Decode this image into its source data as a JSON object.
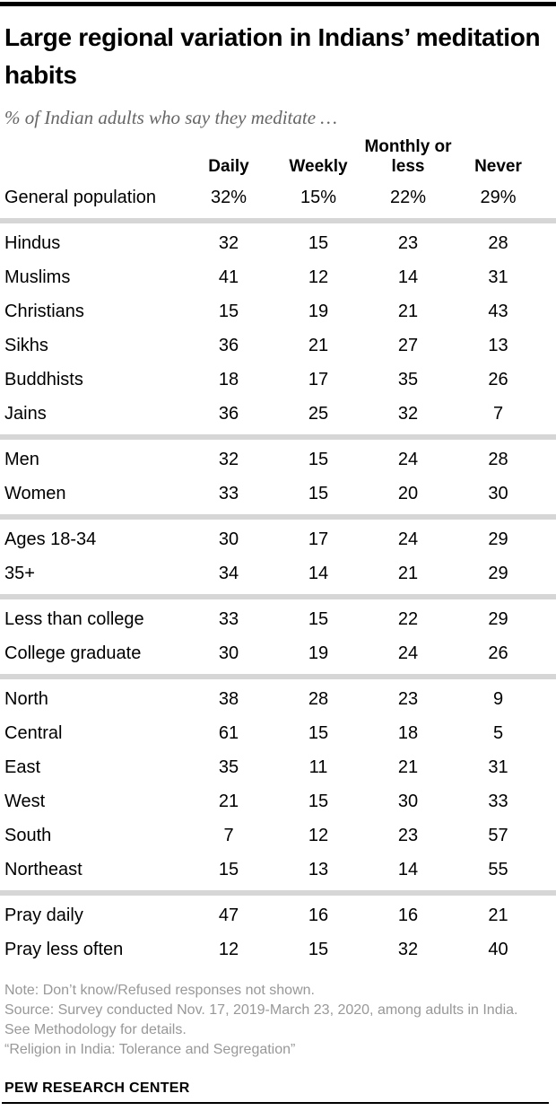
{
  "chart_data": {
    "type": "table",
    "title": "Large regional variation in Indians’ meditation habits",
    "subtitle": "% of Indian adults who say they meditate …",
    "columns": [
      "Daily",
      "Weekly",
      "Monthly or less",
      "Never"
    ],
    "sections": [
      {
        "name": "general",
        "rows": [
          {
            "label": "General population",
            "values": [
              "32%",
              "15%",
              "22%",
              "29%"
            ]
          }
        ]
      },
      {
        "name": "religion",
        "rows": [
          {
            "label": "Hindus",
            "values": [
              "32",
              "15",
              "23",
              "28"
            ]
          },
          {
            "label": "Muslims",
            "values": [
              "41",
              "12",
              "14",
              "31"
            ]
          },
          {
            "label": "Christians",
            "values": [
              "15",
              "19",
              "21",
              "43"
            ]
          },
          {
            "label": "Sikhs",
            "values": [
              "36",
              "21",
              "27",
              "13"
            ]
          },
          {
            "label": "Buddhists",
            "values": [
              "18",
              "17",
              "35",
              "26"
            ]
          },
          {
            "label": "Jains",
            "values": [
              "36",
              "25",
              "32",
              "7"
            ]
          }
        ]
      },
      {
        "name": "gender",
        "rows": [
          {
            "label": "Men",
            "values": [
              "32",
              "15",
              "24",
              "28"
            ]
          },
          {
            "label": "Women",
            "values": [
              "33",
              "15",
              "20",
              "30"
            ]
          }
        ]
      },
      {
        "name": "age",
        "rows": [
          {
            "label": "Ages 18-34",
            "values": [
              "30",
              "17",
              "24",
              "29"
            ]
          },
          {
            "label": "35+",
            "values": [
              "34",
              "14",
              "21",
              "29"
            ]
          }
        ]
      },
      {
        "name": "education",
        "rows": [
          {
            "label": "Less than college",
            "values": [
              "33",
              "15",
              "22",
              "29"
            ]
          },
          {
            "label": "College graduate",
            "values": [
              "30",
              "19",
              "24",
              "26"
            ]
          }
        ]
      },
      {
        "name": "region",
        "rows": [
          {
            "label": "North",
            "values": [
              "38",
              "28",
              "23",
              "9"
            ]
          },
          {
            "label": "Central",
            "values": [
              "61",
              "15",
              "18",
              "5"
            ]
          },
          {
            "label": "East",
            "values": [
              "35",
              "11",
              "21",
              "31"
            ]
          },
          {
            "label": "West",
            "values": [
              "21",
              "15",
              "30",
              "33"
            ]
          },
          {
            "label": "South",
            "values": [
              "7",
              "12",
              "23",
              "57"
            ]
          },
          {
            "label": "Northeast",
            "values": [
              "15",
              "13",
              "14",
              "55"
            ]
          }
        ]
      },
      {
        "name": "prayer",
        "rows": [
          {
            "label": "Pray daily",
            "values": [
              "47",
              "16",
              "16",
              "21"
            ]
          },
          {
            "label": "Pray less often",
            "values": [
              "12",
              "15",
              "32",
              "40"
            ]
          }
        ]
      }
    ],
    "colors": {
      "separator": "#d6d6d6",
      "rule": "#000000",
      "subtitle_text": "#666666",
      "note_text": "#989898"
    }
  },
  "footer": {
    "note": "Note: Don’t know/Refused responses not shown.",
    "source": "Source: Survey conducted Nov. 17, 2019-March 23, 2020, among adults in India. See Methodology for details.",
    "citation": "“Religion in India: Tolerance and Segregation”",
    "brand": "PEW RESEARCH CENTER"
  }
}
